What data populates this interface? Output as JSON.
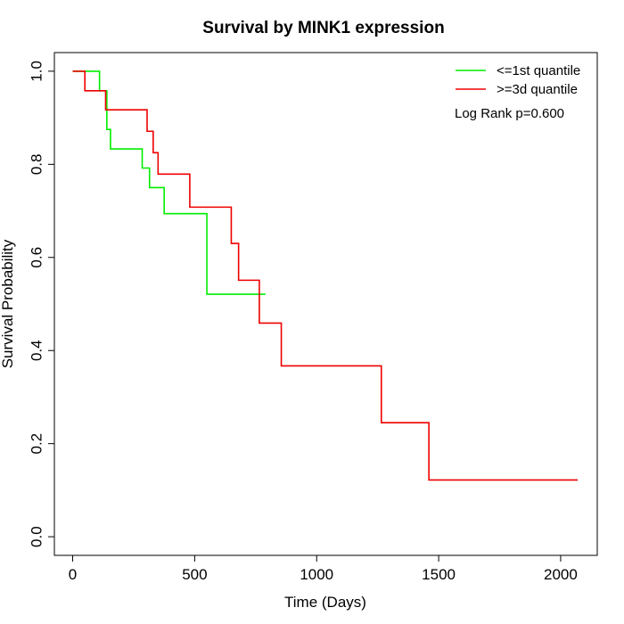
{
  "chart_data": {
    "type": "line",
    "title": "Survival by MINK1 expression",
    "xlabel": "Time (Days)",
    "ylabel": "Survival Probability",
    "xlim": [
      -75,
      2150
    ],
    "ylim": [
      -0.04,
      1.04
    ],
    "x_ticks": [
      0,
      500,
      1000,
      1500,
      2000
    ],
    "x_tick_labels": [
      "0",
      "500",
      "1000",
      "1500",
      "2000"
    ],
    "y_ticks": [
      0.0,
      0.2,
      0.4,
      0.6,
      0.8,
      1.0
    ],
    "y_tick_labels": [
      "0.0",
      "0.2",
      "0.4",
      "0.6",
      "0.8",
      "1.0"
    ],
    "grid": false,
    "legend_position": "top-right",
    "annotation": "Log Rank p=0.600",
    "series": [
      {
        "name": "<=1st quantile",
        "color": "#00ee00",
        "step": true,
        "x": [
          0,
          110,
          140,
          155,
          285,
          315,
          375,
          550,
          790
        ],
        "y": [
          1.0,
          0.958,
          0.875,
          0.833,
          0.792,
          0.75,
          0.694,
          0.521,
          0.521
        ]
      },
      {
        "name": ">=3d quantile",
        "color": "#ee0000",
        "step": true,
        "x": [
          0,
          50,
          135,
          305,
          330,
          350,
          480,
          650,
          680,
          765,
          855,
          1265,
          1460,
          2070
        ],
        "y": [
          1.0,
          0.958,
          0.917,
          0.871,
          0.825,
          0.779,
          0.708,
          0.63,
          0.551,
          0.459,
          0.367,
          0.245,
          0.122,
          0.122
        ]
      }
    ]
  }
}
